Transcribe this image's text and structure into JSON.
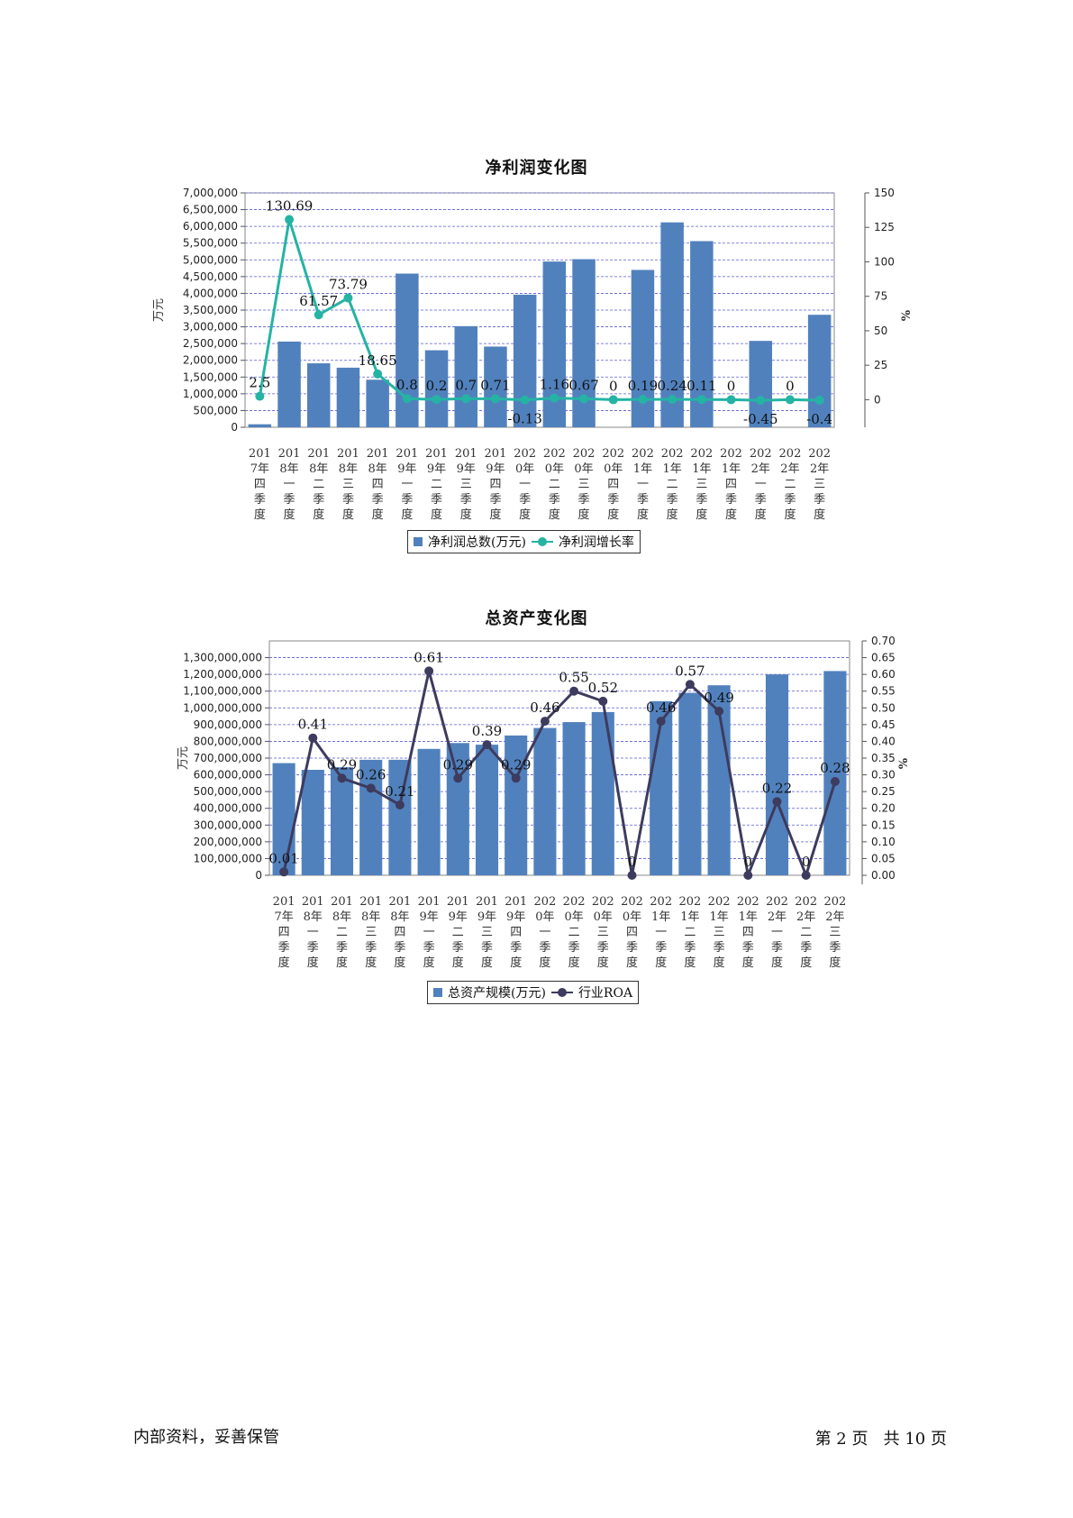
{
  "chart_data": [
    {
      "type": "bar+line",
      "title": "净利润变化图",
      "ylabel_left": "万元",
      "ylabel_right": "%",
      "y_left_ticks": [
        "7,000,000",
        "6,500,000",
        "6,000,000",
        "5,500,000",
        "5,000,000",
        "4,500,000",
        "4,000,000",
        "3,500,000",
        "3,000,000",
        "2,500,000",
        "2,000,000",
        "1,500,000",
        "1,000,000",
        "500,000",
        "0"
      ],
      "y_right_ticks": [
        "150",
        "125",
        "100",
        "75",
        "50",
        "25",
        "0"
      ],
      "ylim_left": [
        0,
        7000000
      ],
      "ylim_right": [
        -20,
        150
      ],
      "grid": true,
      "legend_position": "bottom",
      "categories": [
        "2017年四季度",
        "2018年一季度",
        "2018年二季度",
        "2018年三季度",
        "2018年四季度",
        "2019年一季度",
        "2019年二季度",
        "2019年三季度",
        "2019年四季度",
        "2020年一季度",
        "2020年二季度",
        "2020年三季度",
        "2020年四季度",
        "2021年一季度",
        "2021年二季度",
        "2021年三季度",
        "2021年四季度",
        "2022年一季度",
        "2022年二季度",
        "2022年三季度"
      ],
      "series": [
        {
          "name": "净利润总数(万元)",
          "kind": "bar",
          "axis": "left",
          "color": "#5181bd",
          "values": [
            90000,
            2560000,
            1910000,
            1780000,
            1420000,
            4590000,
            2300000,
            3020000,
            2410000,
            3960000,
            4950000,
            5020000,
            0,
            4700000,
            6120000,
            5560000,
            0,
            2580000,
            0,
            3360000
          ]
        },
        {
          "name": "净利润增长率",
          "kind": "line",
          "axis": "right",
          "color": "#25b3a4",
          "values": [
            2.5,
            130.69,
            61.57,
            73.79,
            18.65,
            0.8,
            0.2,
            0.7,
            0.71,
            -0.13,
            1.16,
            0.67,
            0,
            0.19,
            0.24,
            0.11,
            0,
            -0.45,
            0,
            -0.4
          ],
          "labels": [
            "2.5",
            "130.69",
            "61.57",
            "73.79",
            "18.65",
            "0.8",
            "0.2",
            "0.7",
            "0.71",
            "-0.13",
            "1.16",
            "0.67",
            "0",
            "0.19",
            "0.24",
            "0.11",
            "0",
            "-0.45",
            "0",
            "-0.4"
          ]
        }
      ]
    },
    {
      "type": "bar+line",
      "title": "总资产变化图",
      "ylabel_left": "万元",
      "ylabel_right": "%",
      "y_left_ticks": [
        "1,300,000,000",
        "1,200,000,000",
        "1,100,000,000",
        "1,000,000,000",
        "900,000,000",
        "800,000,000",
        "700,000,000",
        "600,000,000",
        "500,000,000",
        "400,000,000",
        "300,000,000",
        "200,000,000",
        "100,000,000",
        "0"
      ],
      "y_right_ticks": [
        "0.70",
        "0.65",
        "0.60",
        "0.55",
        "0.50",
        "0.45",
        "0.40",
        "0.35",
        "0.30",
        "0.25",
        "0.20",
        "0.15",
        "0.10",
        "0.05",
        "0.00"
      ],
      "ylim_left": [
        0,
        1400000000
      ],
      "ylim_right": [
        0,
        0.7
      ],
      "grid": true,
      "legend_position": "bottom",
      "categories": [
        "2017年四季度",
        "2018年一季度",
        "2018年二季度",
        "2018年三季度",
        "2018年四季度",
        "2019年一季度",
        "2019年二季度",
        "2019年三季度",
        "2019年四季度",
        "2020年一季度",
        "2020年二季度",
        "2020年三季度",
        "2020年四季度",
        "2021年一季度",
        "2021年二季度",
        "2021年三季度",
        "2021年四季度",
        "2022年一季度",
        "2022年二季度",
        "2022年三季度"
      ],
      "series": [
        {
          "name": "总资产规模(万元)",
          "kind": "bar",
          "axis": "left",
          "color": "#5181bd",
          "values": [
            670000000,
            630000000,
            645000000,
            690000000,
            690000000,
            755000000,
            790000000,
            780000000,
            835000000,
            880000000,
            915000000,
            975000000,
            0,
            1040000000,
            1090000000,
            1135000000,
            0,
            1200000000,
            0,
            1220000000
          ]
        },
        {
          "name": "行业ROA",
          "kind": "line",
          "axis": "right",
          "color": "#3d3b5e",
          "values": [
            0.01,
            0.41,
            0.29,
            0.26,
            0.21,
            0.61,
            0.29,
            0.39,
            0.29,
            0.46,
            0.55,
            0.52,
            0,
            0.46,
            0.57,
            0.49,
            0,
            0.22,
            0,
            0.28
          ],
          "labels": [
            "0.01",
            "0.41",
            "0.29",
            "0.26",
            "0.21",
            "0.61",
            "0.29",
            "0.39",
            "0.29",
            "0.46",
            "0.55",
            "0.52",
            "0",
            "0.46",
            "0.57",
            "0.49",
            "0",
            "0.22",
            "0",
            "0.28"
          ]
        }
      ]
    }
  ],
  "footer": {
    "left": "内部资料，妥善保管",
    "right": "第 2 页   共 10 页"
  }
}
